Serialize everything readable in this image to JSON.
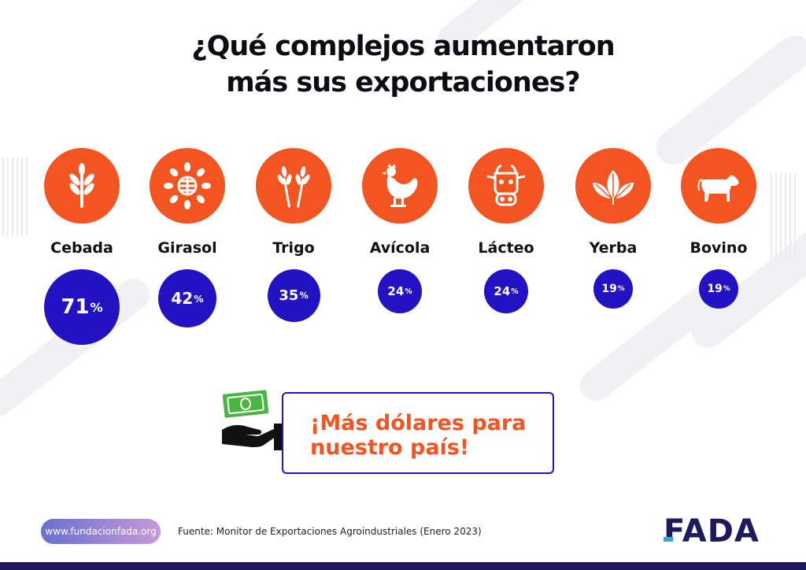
{
  "title": {
    "line1": "¿Qué complejos aumentaron",
    "line2": "más sus exportaciones?"
  },
  "chart_data": {
    "type": "bubble",
    "title": "¿Qué complejos aumentaron más sus exportaciones?",
    "unit": "%",
    "categories": [
      "Cebada",
      "Girasol",
      "Trigo",
      "Avícola",
      "Lácteo",
      "Yerba",
      "Bovino"
    ],
    "values": [
      71,
      42,
      35,
      24,
      24,
      19,
      19
    ],
    "value_labels": [
      "71",
      "42",
      "35",
      "24",
      "24",
      "19",
      "19"
    ],
    "icons": [
      "barley-icon",
      "sunflower-icon",
      "wheat-icon",
      "chicken-icon",
      "cow-head-icon",
      "yerba-leaves-icon",
      "cattle-icon"
    ]
  },
  "percent_symbol": "%",
  "banner": {
    "line1": "¡Más dólares para",
    "line2": "nuestro país!"
  },
  "footer": {
    "website": "www.fundacionfada.org",
    "source": "Fuente: Monitor de Exportaciones Agroindustriales (Enero 2023)",
    "logo_text": "FADA"
  },
  "colors": {
    "accent": "#f4541f",
    "value_circle": "#2312c4",
    "dark": "#1d1a5e"
  }
}
